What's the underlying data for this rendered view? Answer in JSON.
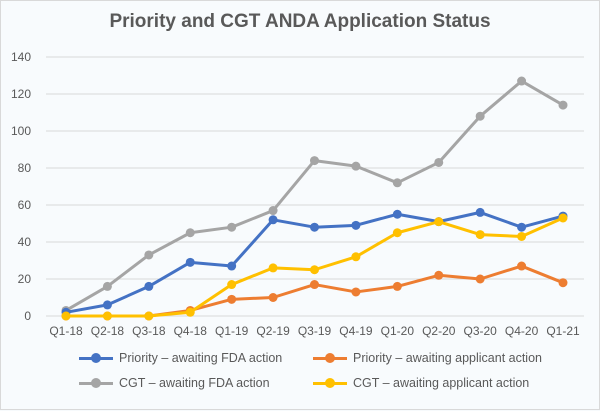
{
  "chart_data": {
    "type": "line",
    "title": "Priority and CGT ANDA Application Status",
    "xlabel": "",
    "ylabel": "",
    "categories": [
      "Q1-18",
      "Q2-18",
      "Q3-18",
      "Q4-18",
      "Q1-19",
      "Q2-19",
      "Q3-19",
      "Q4-19",
      "Q1-20",
      "Q2-20",
      "Q3-20",
      "Q4-20",
      "Q1-21"
    ],
    "ylim": [
      0,
      140
    ],
    "yticks": [
      0,
      20,
      40,
      60,
      80,
      100,
      120,
      140
    ],
    "grid": true,
    "legend_position": "bottom",
    "series": [
      {
        "name": "Priority – awaiting FDA action",
        "color": "#4472c4",
        "values": [
          2,
          6,
          16,
          29,
          27,
          52,
          48,
          49,
          55,
          51,
          56,
          48,
          54
        ]
      },
      {
        "name": "Priority – awaiting applicant action",
        "color": "#ed7d31",
        "values": [
          0,
          0,
          0,
          3,
          9,
          10,
          17,
          13,
          16,
          22,
          20,
          27,
          18
        ]
      },
      {
        "name": "CGT – awaiting FDA action",
        "color": "#a5a5a5",
        "values": [
          3,
          16,
          33,
          45,
          48,
          57,
          84,
          81,
          72,
          83,
          108,
          127,
          114
        ]
      },
      {
        "name": "CGT – awaiting applicant action",
        "color": "#ffc000",
        "values": [
          0,
          0,
          0,
          2,
          17,
          26,
          25,
          32,
          45,
          51,
          44,
          43,
          53
        ]
      }
    ]
  }
}
